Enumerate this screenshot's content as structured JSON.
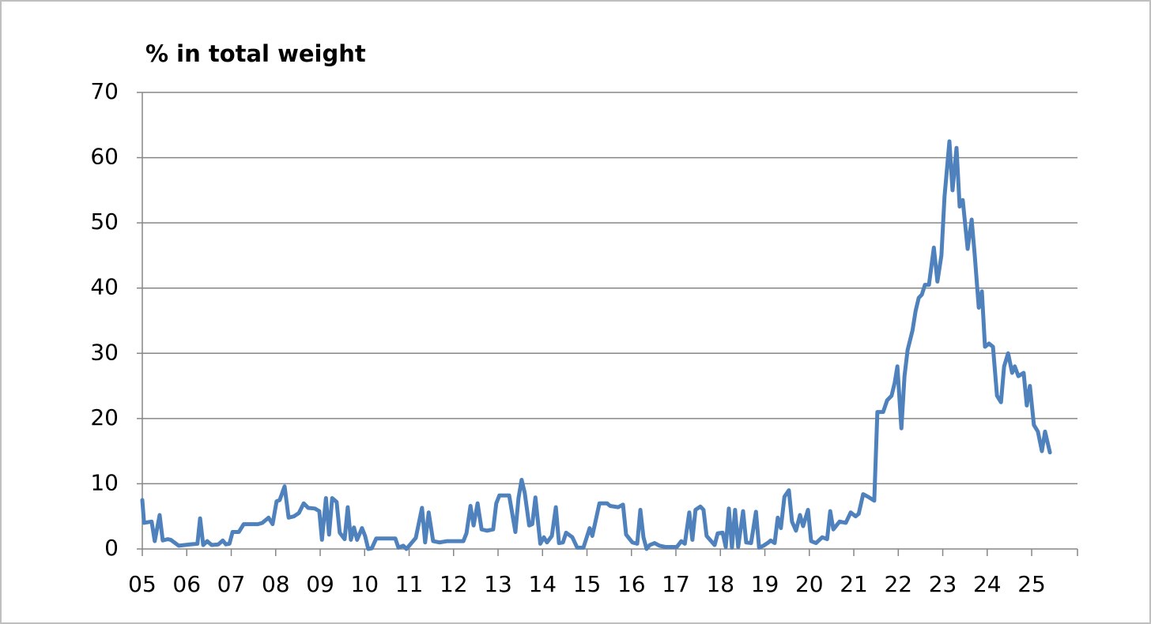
{
  "chart_data": {
    "type": "line",
    "title": "% in total weight",
    "color": "#4f81bd",
    "grid": true,
    "xlim": [
      5,
      26.03
    ],
    "ylim": [
      0,
      70
    ],
    "yticks": [
      0,
      10,
      20,
      30,
      40,
      50,
      60,
      70
    ],
    "xticks": [
      {
        "value": 5,
        "label": "05"
      },
      {
        "value": 6,
        "label": "06"
      },
      {
        "value": 7,
        "label": "07"
      },
      {
        "value": 8,
        "label": "08"
      },
      {
        "value": 9,
        "label": "09"
      },
      {
        "value": 10,
        "label": "10"
      },
      {
        "value": 11,
        "label": "11"
      },
      {
        "value": 12,
        "label": "12"
      },
      {
        "value": 13,
        "label": "13"
      },
      {
        "value": 14,
        "label": "14"
      },
      {
        "value": 15,
        "label": "15"
      },
      {
        "value": 16,
        "label": "16"
      },
      {
        "value": 17,
        "label": "17"
      },
      {
        "value": 18,
        "label": "18"
      },
      {
        "value": 19,
        "label": "19"
      },
      {
        "value": 20,
        "label": "20"
      },
      {
        "value": 21,
        "label": "21"
      },
      {
        "value": 22,
        "label": "22"
      },
      {
        "value": 23,
        "label": "23"
      },
      {
        "value": 24,
        "label": "24"
      },
      {
        "value": 25,
        "label": "25"
      }
    ],
    "x": [
      5.0,
      5.04,
      5.21,
      5.28,
      5.39,
      5.46,
      5.57,
      5.64,
      5.82,
      6.07,
      6.24,
      6.3,
      6.37,
      6.46,
      6.56,
      6.71,
      6.81,
      6.88,
      6.96,
      7.03,
      7.17,
      7.28,
      7.6,
      7.7,
      7.84,
      7.93,
      8.02,
      8.09,
      8.2,
      8.29,
      8.41,
      8.52,
      8.63,
      8.73,
      8.88,
      8.98,
      9.04,
      9.13,
      9.2,
      9.27,
      9.37,
      9.44,
      9.55,
      9.62,
      9.69,
      9.76,
      9.83,
      9.94,
      10.01,
      10.08,
      10.16,
      10.26,
      10.69,
      10.76,
      10.87,
      10.94,
      11.15,
      11.29,
      11.36,
      11.44,
      11.54,
      11.68,
      11.86,
      12.22,
      12.29,
      12.38,
      12.45,
      12.54,
      12.63,
      12.75,
      12.89,
      12.96,
      13.03,
      13.25,
      13.39,
      13.46,
      13.53,
      13.6,
      13.7,
      13.77,
      13.84,
      13.95,
      14.03,
      14.1,
      14.21,
      14.3,
      14.37,
      14.46,
      14.53,
      14.67,
      14.78,
      14.92,
      15.06,
      15.12,
      15.28,
      15.45,
      15.52,
      15.7,
      15.81,
      15.88,
      16.02,
      16.13,
      16.2,
      16.27,
      16.34,
      16.41,
      16.52,
      16.63,
      16.77,
      17.02,
      17.12,
      17.2,
      17.3,
      17.37,
      17.44,
      17.55,
      17.62,
      17.69,
      17.87,
      17.94,
      18.05,
      18.12,
      18.19,
      18.26,
      18.33,
      18.4,
      18.51,
      18.58,
      18.69,
      18.8,
      18.87,
      18.97,
      19.08,
      19.13,
      19.22,
      19.29,
      19.36,
      19.44,
      19.54,
      19.61,
      19.7,
      19.79,
      19.86,
      19.97,
      20.04,
      20.15,
      20.29,
      20.4,
      20.47,
      20.54,
      20.68,
      20.82,
      20.93,
      21.04,
      21.11,
      21.21,
      21.32,
      21.46,
      21.53,
      21.66,
      21.75,
      21.85,
      21.92,
      21.98,
      22.07,
      22.14,
      22.21,
      22.32,
      22.39,
      22.46,
      22.53,
      22.6,
      22.69,
      22.8,
      22.88,
      22.97,
      23.04,
      23.15,
      23.22,
      23.31,
      23.38,
      23.45,
      23.56,
      23.65,
      23.72,
      23.81,
      23.88,
      23.95,
      24.04,
      24.13,
      24.22,
      24.31,
      24.38,
      24.47,
      24.56,
      24.62,
      24.7,
      24.82,
      24.89,
      24.96,
      25.05,
      25.14,
      25.23,
      25.3,
      25.41
    ],
    "values": [
      7.5,
      4,
      4.2,
      1.2,
      5.2,
      1.3,
      1.5,
      1.4,
      0.5,
      0.7,
      0.8,
      4.7,
      0.6,
      1.2,
      0.6,
      0.7,
      1.3,
      0.7,
      0.8,
      2.6,
      2.6,
      3.8,
      3.8,
      4.0,
      4.8,
      3.8,
      7.3,
      7.5,
      9.6,
      4.8,
      5.0,
      5.5,
      7.0,
      6.3,
      6.2,
      5.8,
      1.4,
      7.8,
      2.2,
      7.8,
      7.2,
      2.5,
      1.5,
      6.4,
      1.4,
      3.3,
      1.4,
      3.2,
      2.0,
      0.0,
      0.1,
      1.6,
      1.6,
      0.2,
      0.5,
      0.0,
      1.7,
      6.3,
      1.0,
      5.6,
      1.2,
      1.0,
      1.2,
      1.2,
      2.4,
      6.6,
      3.6,
      7.0,
      3.0,
      2.8,
      3.0,
      7.0,
      8.2,
      8.2,
      2.6,
      7.8,
      10.6,
      8.6,
      3.6,
      3.8,
      7.9,
      0.8,
      1.8,
      1.0,
      2.0,
      6.4,
      0.9,
      1.0,
      2.5,
      1.8,
      0.2,
      0.2,
      3.2,
      2.0,
      7.0,
      7.0,
      6.6,
      6.4,
      6.8,
      2.2,
      1.0,
      0.8,
      6.0,
      1.8,
      0.0,
      0.6,
      0.9,
      0.5,
      0.3,
      0.3,
      1.2,
      0.8,
      5.6,
      1.4,
      6.0,
      6.5,
      6.0,
      2.0,
      0.6,
      2.4,
      2.5,
      0.3,
      6.2,
      0.2,
      6.0,
      0.3,
      5.8,
      1.0,
      0.9,
      5.7,
      0.2,
      0.5,
      1.0,
      1.3,
      0.9,
      4.8,
      3.2,
      8.0,
      9.0,
      4.2,
      2.8,
      5.2,
      3.5,
      6.0,
      1.2,
      0.9,
      1.8,
      1.5,
      5.8,
      3.0,
      4.2,
      4.0,
      5.6,
      5.0,
      5.4,
      8.4,
      8.0,
      7.4,
      21.0,
      21.0,
      22.8,
      23.5,
      25.5,
      28.0,
      18.5,
      26.5,
      30.5,
      33.5,
      36.5,
      38.5,
      39.0,
      40.5,
      40.5,
      46.2,
      41.0,
      45.0,
      54.0,
      62.5,
      55.0,
      61.5,
      52.5,
      53.5,
      46.0,
      50.5,
      45.0,
      37.0,
      39.5,
      31.0,
      31.5,
      31.0,
      23.5,
      22.5,
      28.0,
      30.0,
      27.0,
      28.0,
      26.5,
      27.0,
      22.0,
      25.0,
      19.0,
      18.0,
      15.0,
      18.0,
      14.8
    ]
  }
}
